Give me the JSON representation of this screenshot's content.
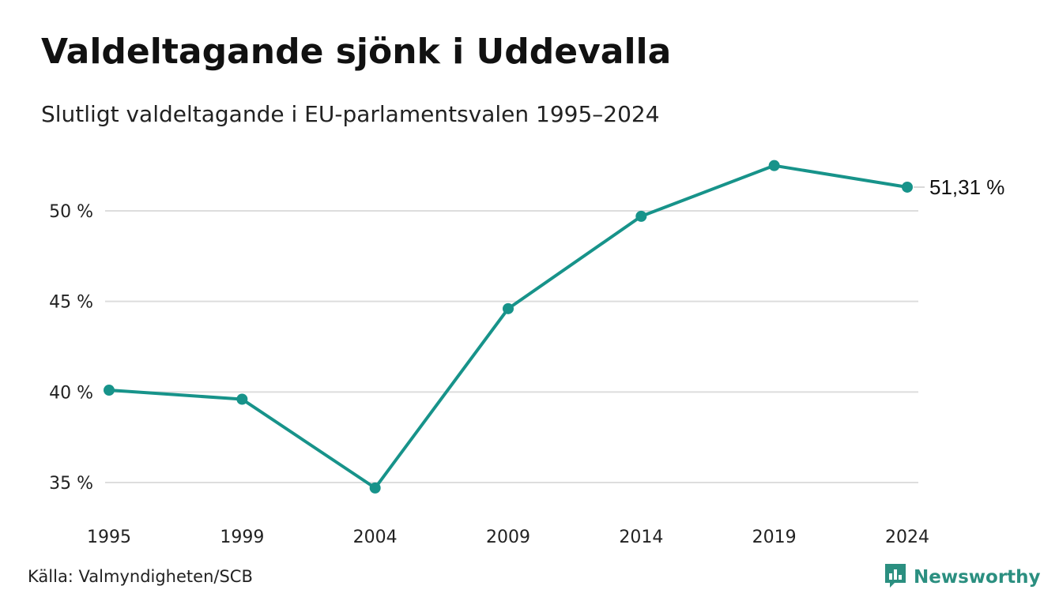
{
  "title": "Valdeltagande sjönk i Uddevalla",
  "subtitle": "Slutligt valdeltagande i EU-parlamentsvalen 1995–2024",
  "source": "Källa: Valmyndigheten/SCB",
  "brand": "Newsworthy",
  "brand_icon": "bar-chart-speech-bubble-icon",
  "colors": {
    "line": "#17938a",
    "grid": "#dddddd",
    "brand": "#2b8f80"
  },
  "chart_data": {
    "type": "line",
    "title": "Valdeltagande sjönk i Uddevalla",
    "subtitle": "Slutligt valdeltagande i EU-parlamentsvalen 1995–2024",
    "xlabel": "",
    "ylabel": "",
    "x": [
      "1995",
      "1999",
      "2004",
      "2009",
      "2014",
      "2019",
      "2024"
    ],
    "series": [
      {
        "values": [
          40.1,
          39.6,
          34.7,
          44.6,
          49.7,
          52.5,
          51.31
        ]
      }
    ],
    "y_ticks": [
      35,
      40,
      45,
      50
    ],
    "y_tick_labels": [
      "35 %",
      "40 %",
      "45 %",
      "50 %"
    ],
    "ylim": [
      35,
      50
    ],
    "grid": true,
    "legend": "none",
    "end_label": "51,31 %"
  }
}
